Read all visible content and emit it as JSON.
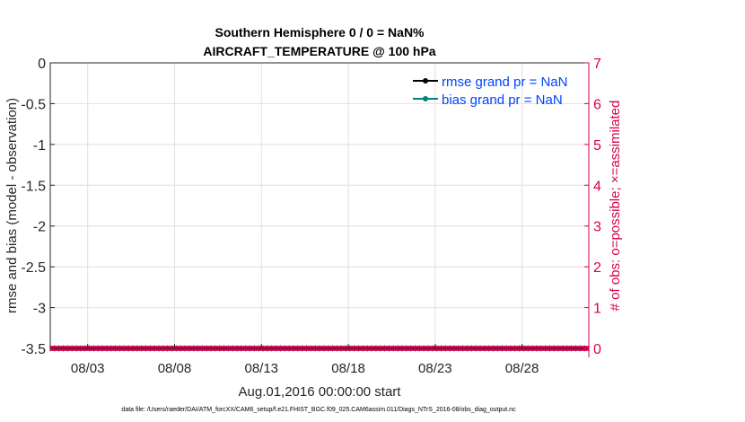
{
  "chart_data": {
    "type": "line",
    "title": [
      "Southern Hemisphere 0 / 0 = NaN%",
      "AIRCRAFT_TEMPERATURE @ 100 hPa"
    ],
    "xlabel": "Aug.01,2016 00:00:00 start",
    "ylabel": "rmse and bias (model - observation)",
    "y2label": "# of obs: o=possible; ×=assimilated",
    "xlim": [
      "2016-08-01",
      "2016-09-01"
    ],
    "xticks": [
      "08/03",
      "08/08",
      "08/13",
      "08/18",
      "08/23",
      "08/28"
    ],
    "xtick_days": [
      3,
      8,
      13,
      18,
      23,
      28
    ],
    "ylim": [
      -3.5,
      0
    ],
    "yticks": [
      "0",
      "-0.5",
      "-1",
      "-1.5",
      "-2",
      "-2.5",
      "-3",
      "-3.5"
    ],
    "y2lim": [
      0,
      7
    ],
    "y2ticks": [
      "7",
      "6",
      "5",
      "4",
      "3",
      "2",
      "1",
      "0"
    ],
    "grid": true,
    "legend_placement": "top-right",
    "series": [
      {
        "name": "rmse grand pr = NaN",
        "color": "#000000",
        "values": []
      },
      {
        "name": "bias grand pr = NaN",
        "color": "#008080",
        "values": []
      }
    ],
    "obs_counts": {
      "color": "#d6004f",
      "possible": [
        0,
        0,
        0,
        0,
        0,
        0,
        0,
        0,
        0,
        0,
        0,
        0,
        0,
        0,
        0,
        0,
        0,
        0,
        0,
        0,
        0,
        0,
        0,
        0,
        0,
        0,
        0,
        0,
        0,
        0,
        0,
        0,
        0,
        0,
        0,
        0,
        0,
        0,
        0,
        0,
        0,
        0,
        0,
        0,
        0,
        0,
        0,
        0,
        0,
        0,
        0,
        0,
        0,
        0,
        0,
        0,
        0,
        0,
        0,
        0,
        0,
        0,
        0,
        0,
        0,
        0,
        0,
        0,
        0,
        0,
        0,
        0,
        0,
        0,
        0,
        0,
        0,
        0,
        0,
        0,
        0,
        0,
        0,
        0,
        0,
        0,
        0,
        0,
        0,
        0,
        0,
        0,
        0,
        0,
        0,
        0,
        0,
        0,
        0,
        0,
        0,
        0,
        0,
        0,
        0,
        0,
        0,
        0,
        0,
        0,
        0,
        0,
        0,
        0,
        0,
        0,
        0,
        0,
        0,
        0,
        0,
        0,
        0,
        0
      ],
      "assimilated": [
        0,
        0,
        0,
        0,
        0,
        0,
        0,
        0,
        0,
        0,
        0,
        0,
        0,
        0,
        0,
        0,
        0,
        0,
        0,
        0,
        0,
        0,
        0,
        0,
        0,
        0,
        0,
        0,
        0,
        0,
        0,
        0,
        0,
        0,
        0,
        0,
        0,
        0,
        0,
        0,
        0,
        0,
        0,
        0,
        0,
        0,
        0,
        0,
        0,
        0,
        0,
        0,
        0,
        0,
        0,
        0,
        0,
        0,
        0,
        0,
        0,
        0,
        0,
        0,
        0,
        0,
        0,
        0,
        0,
        0,
        0,
        0,
        0,
        0,
        0,
        0,
        0,
        0,
        0,
        0,
        0,
        0,
        0,
        0,
        0,
        0,
        0,
        0,
        0,
        0,
        0,
        0,
        0,
        0,
        0,
        0,
        0,
        0,
        0,
        0,
        0,
        0,
        0,
        0,
        0,
        0,
        0,
        0,
        0,
        0,
        0,
        0,
        0,
        0,
        0,
        0,
        0,
        0,
        0,
        0,
        0,
        0,
        0,
        0
      ]
    },
    "legend_text_color": "#0044ff",
    "right_axis_color": "#d6004f"
  },
  "footer": "data file: /Users/raeder/DAI/ATM_forcXX/CAM6_setup/f.e21.FHIST_BGC.f09_025.CAM6assim.011/Diags_NTrS_2016-08/obs_diag_output.nc"
}
